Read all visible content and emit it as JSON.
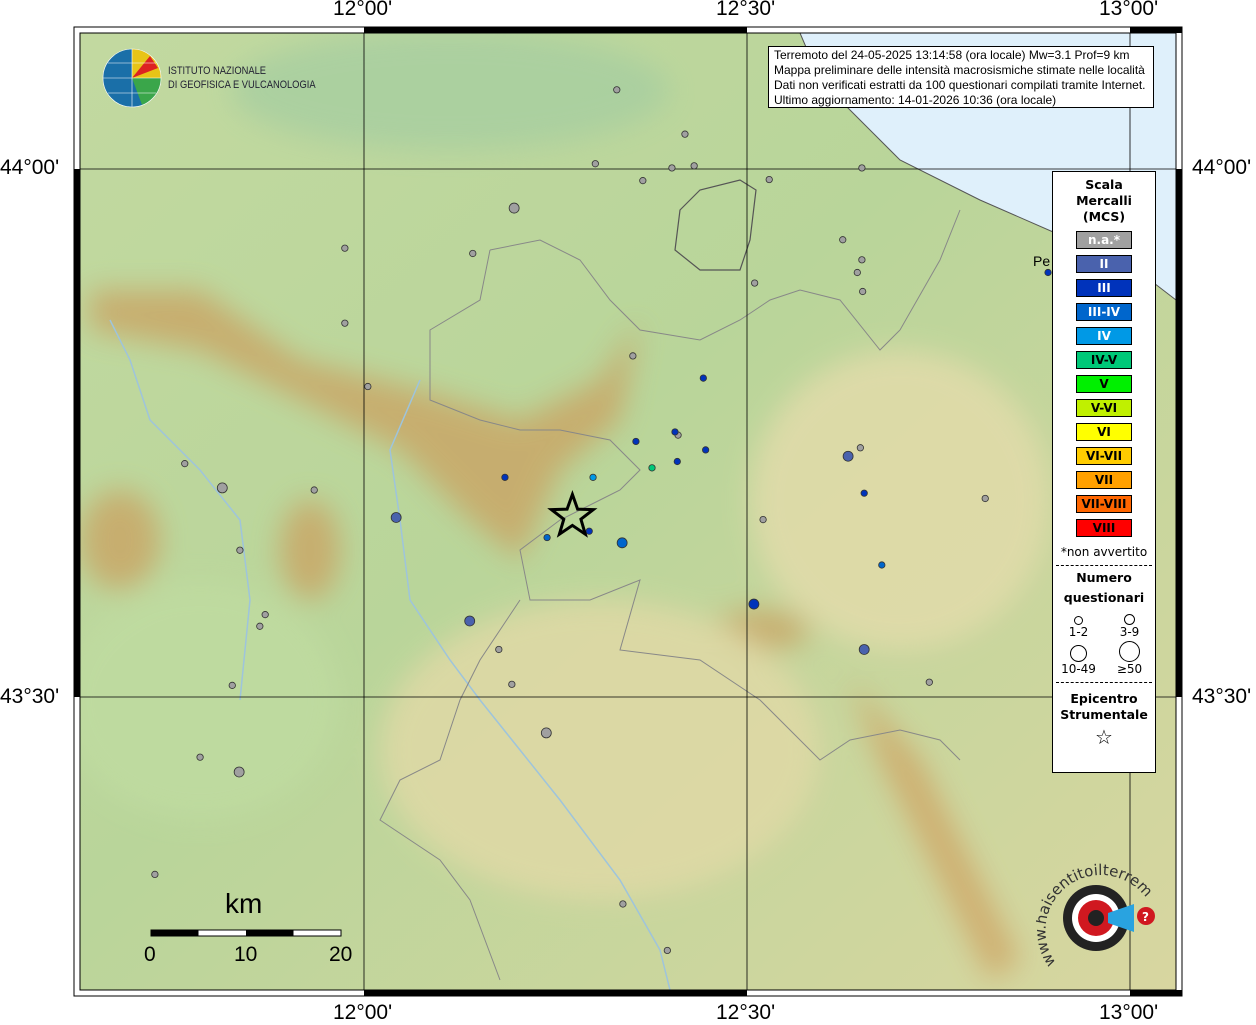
{
  "info": {
    "line1": "Terremoto del 24-05-2025 13:14:58 (ora locale) Mw=3.1 Prof=9 km",
    "line2": "Mappa preliminare delle intensità macrosismiche stimate nelle località",
    "line3": "Dati non verificati estratti da 100 questionari compilati tramite Internet.",
    "line4": "Ultimo aggiornamento: 14-01-2026 10:36 (ora locale)"
  },
  "logo_ingv": {
    "line1": "ISTITUTO NAZIONALE",
    "line2": "DI GEOFISICA E VULCANOLOGIA"
  },
  "logo_hst": {
    "text": "www.haisentitoilterremoto.it"
  },
  "axes": {
    "lon_ticks": [
      "12°00'",
      "12°30'",
      "13°00'"
    ],
    "lat_ticks": [
      "44°00'",
      "43°30'"
    ]
  },
  "place_label": "Pe",
  "legend": {
    "title1": "Scala",
    "title2": "Mercalli",
    "title3": "(MCS)",
    "classes": [
      {
        "label": "n.a.*",
        "color": "#a0a0a0",
        "text_color": "#ffffff"
      },
      {
        "label": "II",
        "color": "#4a62ad",
        "text_color": "#ffffff"
      },
      {
        "label": "III",
        "color": "#0033bb",
        "text_color": "#ffffff"
      },
      {
        "label": "III-IV",
        "color": "#0066cc",
        "text_color": "#ffffff"
      },
      {
        "label": "IV",
        "color": "#0099e6",
        "text_color": "#ffffff"
      },
      {
        "label": "IV-V",
        "color": "#00c878",
        "text_color": "#000000"
      },
      {
        "label": "V",
        "color": "#00f000",
        "text_color": "#000000"
      },
      {
        "label": "V-VI",
        "color": "#c0f000",
        "text_color": "#000000"
      },
      {
        "label": "VI",
        "color": "#ffff00",
        "text_color": "#000000"
      },
      {
        "label": "VI-VII",
        "color": "#ffcc00",
        "text_color": "#000000"
      },
      {
        "label": "VII",
        "color": "#ffa000",
        "text_color": "#000000"
      },
      {
        "label": "VII-VIII",
        "color": "#ff6600",
        "text_color": "#000000"
      },
      {
        "label": "VIII",
        "color": "#ff0000",
        "text_color": "#000000"
      }
    ],
    "na_note": "*non avvertito",
    "count_title1": "Numero",
    "count_title2": "questionari",
    "counts": [
      "1-2",
      "3-9",
      "10-49",
      "≥50"
    ],
    "epi_title1": "Epicentro",
    "epi_title2": "Strumentale"
  },
  "scalebar": {
    "unit": "km",
    "labels": [
      "0",
      "10",
      "20"
    ]
  },
  "epicenter": {
    "lon": 12.272,
    "lat": 43.671
  },
  "observations": [
    {
      "lon": 12.33,
      "lat": 44.075,
      "mcs": "n.a.*",
      "count": "1-2"
    },
    {
      "lon": 12.419,
      "lat": 44.033,
      "mcs": "n.a.*",
      "count": "1-2"
    },
    {
      "lon": 12.302,
      "lat": 44.005,
      "mcs": "n.a.*",
      "count": "1-2"
    },
    {
      "lon": 12.402,
      "lat": 44.001,
      "mcs": "n.a.*",
      "count": "1-2"
    },
    {
      "lon": 12.431,
      "lat": 44.003,
      "mcs": "n.a.*",
      "count": "1-2"
    },
    {
      "lon": 12.364,
      "lat": 43.989,
      "mcs": "n.a.*",
      "count": "1-2"
    },
    {
      "lon": 12.529,
      "lat": 43.99,
      "mcs": "n.a.*",
      "count": "1-2"
    },
    {
      "lon": 12.65,
      "lat": 44.001,
      "mcs": "n.a.*",
      "count": "1-2"
    },
    {
      "lon": 11.975,
      "lat": 43.925,
      "mcs": "n.a.*",
      "count": "1-2"
    },
    {
      "lon": 12.142,
      "lat": 43.92,
      "mcs": "n.a.*",
      "count": "1-2"
    },
    {
      "lon": 12.625,
      "lat": 43.933,
      "mcs": "n.a.*",
      "count": "1-2"
    },
    {
      "lon": 12.65,
      "lat": 43.914,
      "mcs": "n.a.*",
      "count": "1-2"
    },
    {
      "lon": 12.644,
      "lat": 43.902,
      "mcs": "n.a.*",
      "count": "1-2"
    },
    {
      "lon": 12.651,
      "lat": 43.884,
      "mcs": "n.a.*",
      "count": "1-2"
    },
    {
      "lon": 12.51,
      "lat": 43.892,
      "mcs": "n.a.*",
      "count": "1-2"
    },
    {
      "lon": 11.975,
      "lat": 43.854,
      "mcs": "n.a.*",
      "count": "1-2"
    },
    {
      "lon": 12.351,
      "lat": 43.823,
      "mcs": "n.a.*",
      "count": "1-2"
    },
    {
      "lon": 12.005,
      "lat": 43.794,
      "mcs": "n.a.*",
      "count": "1-2"
    },
    {
      "lon": 12.41,
      "lat": 43.748,
      "mcs": "n.a.*",
      "count": "1-2"
    },
    {
      "lon": 12.648,
      "lat": 43.736,
      "mcs": "n.a.*",
      "count": "1-2"
    },
    {
      "lon": 11.766,
      "lat": 43.721,
      "mcs": "n.a.*",
      "count": "1-2"
    },
    {
      "lon": 11.935,
      "lat": 43.696,
      "mcs": "n.a.*",
      "count": "1-2"
    },
    {
      "lon": 11.838,
      "lat": 43.639,
      "mcs": "n.a.*",
      "count": "1-2"
    },
    {
      "lon": 11.871,
      "lat": 43.578,
      "mcs": "n.a.*",
      "count": "1-2"
    },
    {
      "lon": 11.864,
      "lat": 43.567,
      "mcs": "n.a.*",
      "count": "1-2"
    },
    {
      "lon": 11.828,
      "lat": 43.511,
      "mcs": "n.a.*",
      "count": "1-2"
    },
    {
      "lon": 12.176,
      "lat": 43.545,
      "mcs": "n.a.*",
      "count": "1-2"
    },
    {
      "lon": 12.193,
      "lat": 43.512,
      "mcs": "n.a.*",
      "count": "1-2"
    },
    {
      "lon": 12.521,
      "lat": 43.668,
      "mcs": "n.a.*",
      "count": "1-2"
    },
    {
      "lon": 12.811,
      "lat": 43.688,
      "mcs": "n.a.*",
      "count": "1-2"
    },
    {
      "lon": 12.738,
      "lat": 43.514,
      "mcs": "n.a.*",
      "count": "1-2"
    },
    {
      "lon": 11.786,
      "lat": 43.443,
      "mcs": "n.a.*",
      "count": "1-2"
    },
    {
      "lon": 11.727,
      "lat": 43.332,
      "mcs": "n.a.*",
      "count": "1-2"
    },
    {
      "lon": 12.338,
      "lat": 43.304,
      "mcs": "n.a.*",
      "count": "1-2"
    },
    {
      "lon": 12.396,
      "lat": 43.26,
      "mcs": "n.a.*",
      "count": "1-2"
    },
    {
      "lon": 12.196,
      "lat": 43.963,
      "mcs": "n.a.*",
      "count": "3-9"
    },
    {
      "lon": 11.815,
      "lat": 43.698,
      "mcs": "n.a.*",
      "count": "3-9"
    },
    {
      "lon": 12.238,
      "lat": 43.466,
      "mcs": "n.a.*",
      "count": "3-9"
    },
    {
      "lon": 11.837,
      "lat": 43.429,
      "mcs": "n.a.*",
      "count": "3-9"
    },
    {
      "lon": 12.042,
      "lat": 43.67,
      "mcs": "II",
      "count": "3-9"
    },
    {
      "lon": 12.138,
      "lat": 43.572,
      "mcs": "II",
      "count": "3-9"
    },
    {
      "lon": 12.632,
      "lat": 43.728,
      "mcs": "II",
      "count": "3-9"
    },
    {
      "lon": 12.653,
      "lat": 43.545,
      "mcs": "II",
      "count": "3-9"
    },
    {
      "lon": 12.443,
      "lat": 43.802,
      "mcs": "III",
      "count": "1-2"
    },
    {
      "lon": 12.355,
      "lat": 43.742,
      "mcs": "III",
      "count": "1-2"
    },
    {
      "lon": 12.406,
      "lat": 43.751,
      "mcs": "III",
      "count": "1-2"
    },
    {
      "lon": 12.409,
      "lat": 43.723,
      "mcs": "III",
      "count": "1-2"
    },
    {
      "lon": 12.446,
      "lat": 43.734,
      "mcs": "III",
      "count": "1-2"
    },
    {
      "lon": 12.184,
      "lat": 43.708,
      "mcs": "III",
      "count": "1-2"
    },
    {
      "lon": 12.653,
      "lat": 43.693,
      "mcs": "III",
      "count": "1-2"
    },
    {
      "lon": 12.294,
      "lat": 43.657,
      "mcs": "III",
      "count": "1-2"
    },
    {
      "lon": 12.509,
      "lat": 43.588,
      "mcs": "III",
      "count": "3-9"
    },
    {
      "lon": 12.893,
      "lat": 43.902,
      "mcs": "III",
      "count": "1-2"
    },
    {
      "lon": 12.239,
      "lat": 43.651,
      "mcs": "III-IV",
      "count": "1-2"
    },
    {
      "lon": 12.676,
      "lat": 43.625,
      "mcs": "III-IV",
      "count": "1-2"
    },
    {
      "lon": 12.337,
      "lat": 43.646,
      "mcs": "III-IV",
      "count": "3-9"
    },
    {
      "lon": 12.299,
      "lat": 43.708,
      "mcs": "IV",
      "count": "1-2"
    },
    {
      "lon": 12.376,
      "lat": 43.717,
      "mcs": "IV-V",
      "count": "1-2"
    }
  ],
  "colors": {
    "sea": "#dff0fb",
    "lowland": "#a6cf94",
    "hill": "#e2d9a0",
    "mountain": "#b88a48",
    "grid": "#000000",
    "border": "#777777",
    "river": "#9ec4dc"
  }
}
